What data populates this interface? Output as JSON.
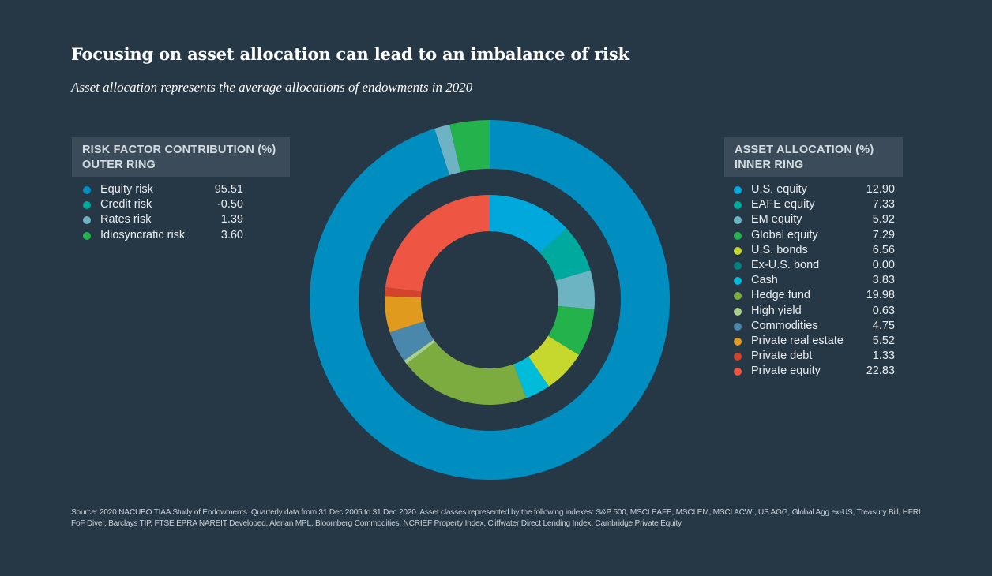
{
  "header": {
    "title": "Focusing on asset allocation can lead to an imbalance of risk",
    "subtitle": "Asset allocation represents the average allocations of endowments in 2020"
  },
  "left_legend": {
    "heading_line1": "RISK FACTOR CONTRIBUTION (%)",
    "heading_line2": "OUTER RING"
  },
  "right_legend": {
    "heading_line1": "ASSET ALLOCATION (%)",
    "heading_line2": "INNER RING"
  },
  "chart_data": {
    "type": "pie",
    "rings": [
      {
        "name": "OUTER RING",
        "items": [
          {
            "label": "Equity risk",
            "value": "95.51",
            "color": "#008dc0"
          },
          {
            "label": "Credit risk",
            "value": "-0.50",
            "color": "#00a79d"
          },
          {
            "label": "Rates risk",
            "value": "1.39",
            "color": "#6eb3c4"
          },
          {
            "label": "Idiosyncratic risk",
            "value": "3.60",
            "color": "#23b24b"
          }
        ]
      },
      {
        "name": "INNER RING",
        "items": [
          {
            "label": "U.S. equity",
            "value": "12.90",
            "color": "#00a8db"
          },
          {
            "label": "EAFE equity",
            "value": "7.33",
            "color": "#00a99d"
          },
          {
            "label": "EM equity",
            "value": "5.92",
            "color": "#6db4c2"
          },
          {
            "label": "Global equity",
            "value": "7.29",
            "color": "#23b24b"
          },
          {
            "label": "U.S. bonds",
            "value": "6.56",
            "color": "#c6d82e"
          },
          {
            "label": "Ex-U.S. bond",
            "value": "0.00",
            "color": "#00827f"
          },
          {
            "label": "Cash",
            "value": "3.83",
            "color": "#00bcd8"
          },
          {
            "label": "Hedge fund",
            "value": "19.98",
            "color": "#7cac3f"
          },
          {
            "label": "High yield",
            "value": "0.63",
            "color": "#a9d08e"
          },
          {
            "label": "Commodities",
            "value": "4.75",
            "color": "#4a88ab"
          },
          {
            "label": "Private real estate",
            "value": "5.52",
            "color": "#e09a1e"
          },
          {
            "label": "Private debt",
            "value": "1.33",
            "color": "#d2442b"
          },
          {
            "label": "Private equity",
            "value": "22.83",
            "color": "#ee5543"
          }
        ]
      }
    ]
  },
  "source": "Source: 2020 NACUBO TIAA Study of Endowments. Quarterly data from 31 Dec 2005 to 31 Dec 2020. Asset classes represented by the following indexes: S&P 500, MSCI EAFE, MSCI EM, MSCI ACWI, US AGG, Global Agg ex-US, Treasury Bill, HFRI FoF Diver, Barclays TIP, FTSE EPRA NAREIT Developed, Alerian MPL, Bloomberg Commodities, NCRIEF Property Index, Cliffwater Direct Lending Index, Cambridge Private Equity."
}
